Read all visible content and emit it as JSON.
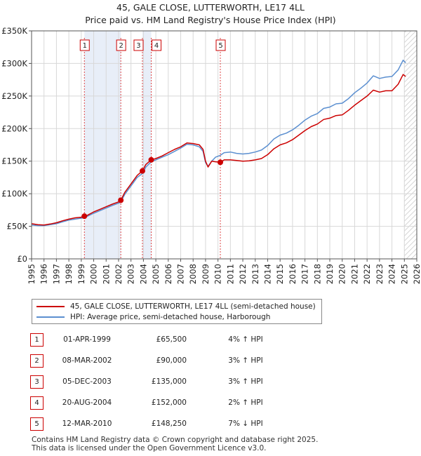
{
  "title": {
    "line1": "45, GALE CLOSE, LUTTERWORTH, LE17 4LL",
    "line2": "Price paid vs. HM Land Registry's House Price Index (HPI)"
  },
  "colors": {
    "property": "#cc0000",
    "hpi": "#5b8fd0",
    "shade": "#e8eef8",
    "grid": "#d8d8d8"
  },
  "legend": {
    "property_label": "45, GALE CLOSE, LUTTERWORTH, LE17 4LL (semi-detached house)",
    "hpi_label": "HPI: Average price, semi-detached house, Harborough"
  },
  "transactions": [
    {
      "num": "1",
      "date": "01-APR-1999",
      "price": "£65,500",
      "hpi": "4% ↑ HPI"
    },
    {
      "num": "2",
      "date": "08-MAR-2002",
      "price": "£90,000",
      "hpi": "3% ↑ HPI"
    },
    {
      "num": "3",
      "date": "05-DEC-2003",
      "price": "£135,000",
      "hpi": "3% ↑ HPI"
    },
    {
      "num": "4",
      "date": "20-AUG-2004",
      "price": "£152,000",
      "hpi": "2% ↑ HPI"
    },
    {
      "num": "5",
      "date": "12-MAR-2010",
      "price": "£148,250",
      "hpi": "7% ↓ HPI"
    }
  ],
  "footer": {
    "line1": "Contains HM Land Registry data © Crown copyright and database right 2025.",
    "line2": "This data is licensed under the Open Government Licence v3.0."
  },
  "chart_data": {
    "type": "line",
    "title": "45, GALE CLOSE, LUTTERWORTH, LE17 4LL",
    "subtitle": "Price paid vs. HM Land Registry's House Price Index (HPI)",
    "xlabel": "",
    "ylabel": "",
    "xlim": [
      1995,
      2026
    ],
    "ylim": [
      0,
      350000
    ],
    "x_ticks": [
      1995,
      1996,
      1997,
      1998,
      1999,
      2000,
      2001,
      2002,
      2003,
      2004,
      2005,
      2006,
      2007,
      2008,
      2009,
      2010,
      2011,
      2012,
      2013,
      2014,
      2015,
      2016,
      2017,
      2018,
      2019,
      2020,
      2021,
      2022,
      2023,
      2024,
      2025,
      2026
    ],
    "y_ticks": [
      {
        "value": 0,
        "label": "£0"
      },
      {
        "value": 50000,
        "label": "£50K"
      },
      {
        "value": 100000,
        "label": "£100K"
      },
      {
        "value": 150000,
        "label": "£150K"
      },
      {
        "value": 200000,
        "label": "£200K"
      },
      {
        "value": 250000,
        "label": "£250K"
      },
      {
        "value": 300000,
        "label": "£300K"
      },
      {
        "value": 350000,
        "label": "£350K"
      }
    ],
    "grid": true,
    "legend_position": "below-chart",
    "shaded_ranges": [
      [
        1999.25,
        2002.18
      ],
      [
        2003.92,
        2004.63
      ]
    ],
    "future_hatch_from": 2025.0,
    "series": [
      {
        "name": "45, GALE CLOSE, LUTTERWORTH, LE17 4LL (semi-detached house)",
        "color": "#cc0000",
        "points": [
          [
            1995.0,
            54000
          ],
          [
            1995.5,
            52500
          ],
          [
            1996.0,
            52000
          ],
          [
            1996.5,
            53500
          ],
          [
            1997.0,
            55500
          ],
          [
            1997.5,
            58500
          ],
          [
            1998.0,
            61000
          ],
          [
            1998.5,
            63000
          ],
          [
            1999.0,
            64000
          ],
          [
            1999.25,
            65500
          ],
          [
            1999.5,
            67000
          ],
          [
            2000.0,
            72000
          ],
          [
            2000.5,
            76000
          ],
          [
            2001.0,
            80000
          ],
          [
            2001.5,
            84000
          ],
          [
            2002.0,
            87500
          ],
          [
            2002.18,
            90000
          ],
          [
            2002.5,
            102000
          ],
          [
            2003.0,
            115000
          ],
          [
            2003.5,
            128000
          ],
          [
            2003.92,
            135000
          ],
          [
            2004.2,
            145000
          ],
          [
            2004.63,
            152000
          ],
          [
            2005.0,
            154000
          ],
          [
            2005.5,
            158000
          ],
          [
            2006.0,
            163000
          ],
          [
            2006.5,
            168000
          ],
          [
            2007.0,
            172000
          ],
          [
            2007.5,
            178000
          ],
          [
            2008.0,
            177000
          ],
          [
            2008.5,
            175000
          ],
          [
            2008.8,
            168000
          ],
          [
            2009.0,
            150000
          ],
          [
            2009.2,
            141000
          ],
          [
            2009.5,
            150000
          ],
          [
            2009.8,
            149000
          ],
          [
            2010.19,
            148250
          ],
          [
            2010.5,
            152000
          ],
          [
            2011.0,
            152000
          ],
          [
            2011.5,
            151000
          ],
          [
            2012.0,
            150000
          ],
          [
            2012.5,
            150500
          ],
          [
            2013.0,
            152000
          ],
          [
            2013.5,
            154000
          ],
          [
            2014.0,
            160000
          ],
          [
            2014.5,
            169000
          ],
          [
            2015.0,
            175000
          ],
          [
            2015.5,
            178000
          ],
          [
            2016.0,
            183000
          ],
          [
            2016.5,
            190000
          ],
          [
            2017.0,
            197000
          ],
          [
            2017.5,
            203000
          ],
          [
            2018.0,
            207000
          ],
          [
            2018.5,
            214000
          ],
          [
            2019.0,
            216000
          ],
          [
            2019.5,
            220000
          ],
          [
            2020.0,
            221000
          ],
          [
            2020.5,
            228000
          ],
          [
            2021.0,
            236000
          ],
          [
            2021.5,
            243000
          ],
          [
            2022.0,
            250000
          ],
          [
            2022.5,
            259000
          ],
          [
            2023.0,
            256000
          ],
          [
            2023.5,
            258000
          ],
          [
            2024.0,
            258000
          ],
          [
            2024.5,
            268000
          ],
          [
            2024.9,
            283000
          ],
          [
            2025.1,
            280000
          ]
        ]
      },
      {
        "name": "HPI: Average price, semi-detached house, Harborough",
        "color": "#5b8fd0",
        "points": [
          [
            1995.0,
            52000
          ],
          [
            1995.5,
            51000
          ],
          [
            1996.0,
            51000
          ],
          [
            1996.5,
            52500
          ],
          [
            1997.0,
            54000
          ],
          [
            1997.5,
            57000
          ],
          [
            1998.0,
            59500
          ],
          [
            1998.5,
            61000
          ],
          [
            1999.0,
            62500
          ],
          [
            1999.25,
            63000
          ],
          [
            1999.5,
            65500
          ],
          [
            2000.0,
            70000
          ],
          [
            2000.5,
            74000
          ],
          [
            2001.0,
            78000
          ],
          [
            2001.5,
            82000
          ],
          [
            2002.0,
            85500
          ],
          [
            2002.18,
            87500
          ],
          [
            2002.5,
            99000
          ],
          [
            2003.0,
            112000
          ],
          [
            2003.5,
            125000
          ],
          [
            2003.92,
            131000
          ],
          [
            2004.2,
            141000
          ],
          [
            2004.63,
            149000
          ],
          [
            2005.0,
            152000
          ],
          [
            2005.5,
            156000
          ],
          [
            2006.0,
            160000
          ],
          [
            2006.5,
            165000
          ],
          [
            2007.0,
            170000
          ],
          [
            2007.5,
            176000
          ],
          [
            2008.0,
            175000
          ],
          [
            2008.5,
            172000
          ],
          [
            2008.8,
            165000
          ],
          [
            2009.0,
            148000
          ],
          [
            2009.2,
            142000
          ],
          [
            2009.5,
            150000
          ],
          [
            2009.8,
            156000
          ],
          [
            2010.19,
            159000
          ],
          [
            2010.5,
            163000
          ],
          [
            2011.0,
            164000
          ],
          [
            2011.5,
            162000
          ],
          [
            2012.0,
            161000
          ],
          [
            2012.5,
            162000
          ],
          [
            2013.0,
            164000
          ],
          [
            2013.5,
            167000
          ],
          [
            2014.0,
            174000
          ],
          [
            2014.5,
            184000
          ],
          [
            2015.0,
            190000
          ],
          [
            2015.5,
            193000
          ],
          [
            2016.0,
            198000
          ],
          [
            2016.5,
            205000
          ],
          [
            2017.0,
            213000
          ],
          [
            2017.5,
            219000
          ],
          [
            2018.0,
            223000
          ],
          [
            2018.5,
            231000
          ],
          [
            2019.0,
            233000
          ],
          [
            2019.5,
            238000
          ],
          [
            2020.0,
            239000
          ],
          [
            2020.5,
            246000
          ],
          [
            2021.0,
            255000
          ],
          [
            2021.5,
            262000
          ],
          [
            2022.0,
            270000
          ],
          [
            2022.5,
            281000
          ],
          [
            2023.0,
            277000
          ],
          [
            2023.5,
            279000
          ],
          [
            2024.0,
            280000
          ],
          [
            2024.5,
            290000
          ],
          [
            2024.9,
            305000
          ],
          [
            2025.1,
            301000
          ]
        ]
      }
    ],
    "markers": [
      {
        "label": "1",
        "x": 1999.25,
        "y": 65500
      },
      {
        "label": "2",
        "x": 2002.18,
        "y": 90000
      },
      {
        "label": "3",
        "x": 2003.92,
        "y": 135000
      },
      {
        "label": "4",
        "x": 2004.63,
        "y": 152000
      },
      {
        "label": "5",
        "x": 2010.19,
        "y": 148250
      }
    ]
  }
}
